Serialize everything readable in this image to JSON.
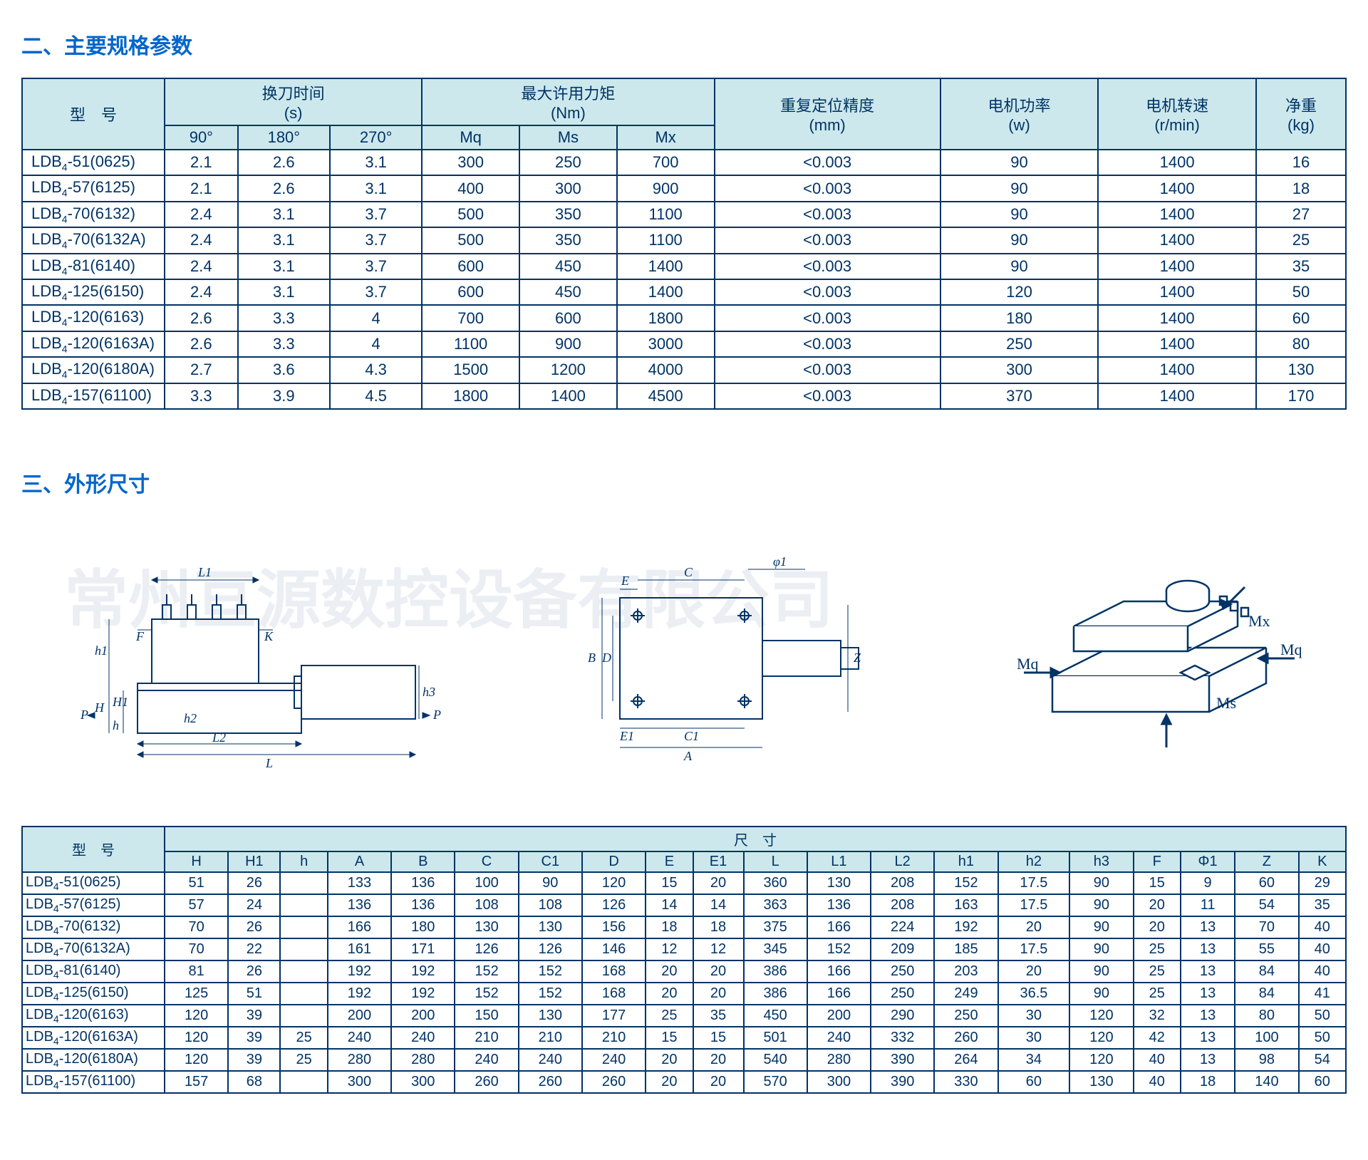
{
  "colors": {
    "border": "#003366",
    "header_bg": "#cce8ec",
    "cell_bg": "#ffffff",
    "text": "#003366",
    "title": "#0066cc",
    "watermark": "rgba(0,50,120,0.08)"
  },
  "watermark_text": "常州亘源数控设备有限公司",
  "section2": {
    "title": "二、主要规格参数",
    "headers": {
      "model": "型　号",
      "tool_time": "换刀时间\n(s)",
      "tool_time_sub": [
        "90°",
        "180°",
        "270°"
      ],
      "torque": "最大许用力矩\n(Nm)",
      "torque_sub": [
        "Mq",
        "Ms",
        "Mx"
      ],
      "repeat": "重复定位精度\n(mm)",
      "power": "电机功率\n(w)",
      "speed": "电机转速\n(r/min)",
      "weight": "净重\n(kg)"
    },
    "rows": [
      {
        "model": "LDB4-51(0625)",
        "t90": "2.1",
        "t180": "2.6",
        "t270": "3.1",
        "mq": "300",
        "ms": "250",
        "mx": "700",
        "rep": "<0.003",
        "pw": "90",
        "sp": "1400",
        "wt": "16"
      },
      {
        "model": "LDB4-57(6125)",
        "t90": "2.1",
        "t180": "2.6",
        "t270": "3.1",
        "mq": "400",
        "ms": "300",
        "mx": "900",
        "rep": "<0.003",
        "pw": "90",
        "sp": "1400",
        "wt": "18"
      },
      {
        "model": "LDB4-70(6132)",
        "t90": "2.4",
        "t180": "3.1",
        "t270": "3.7",
        "mq": "500",
        "ms": "350",
        "mx": "1100",
        "rep": "<0.003",
        "pw": "90",
        "sp": "1400",
        "wt": "27"
      },
      {
        "model": "LDB4-70(6132A)",
        "t90": "2.4",
        "t180": "3.1",
        "t270": "3.7",
        "mq": "500",
        "ms": "350",
        "mx": "1100",
        "rep": "<0.003",
        "pw": "90",
        "sp": "1400",
        "wt": "25"
      },
      {
        "model": "LDB4-81(6140)",
        "t90": "2.4",
        "t180": "3.1",
        "t270": "3.7",
        "mq": "600",
        "ms": "450",
        "mx": "1400",
        "rep": "<0.003",
        "pw": "90",
        "sp": "1400",
        "wt": "35"
      },
      {
        "model": "LDB4-125(6150)",
        "t90": "2.4",
        "t180": "3.1",
        "t270": "3.7",
        "mq": "600",
        "ms": "450",
        "mx": "1400",
        "rep": "<0.003",
        "pw": "120",
        "sp": "1400",
        "wt": "50"
      },
      {
        "model": "LDB4-120(6163)",
        "t90": "2.6",
        "t180": "3.3",
        "t270": "4",
        "mq": "700",
        "ms": "600",
        "mx": "1800",
        "rep": "<0.003",
        "pw": "180",
        "sp": "1400",
        "wt": "60"
      },
      {
        "model": "LDB4-120(6163A)",
        "t90": "2.6",
        "t180": "3.3",
        "t270": "4",
        "mq": "1100",
        "ms": "900",
        "mx": "3000",
        "rep": "<0.003",
        "pw": "250",
        "sp": "1400",
        "wt": "80"
      },
      {
        "model": "LDB4-120(6180A)",
        "t90": "2.7",
        "t180": "3.6",
        "t270": "4.3",
        "mq": "1500",
        "ms": "1200",
        "mx": "4000",
        "rep": "<0.003",
        "pw": "300",
        "sp": "1400",
        "wt": "130"
      },
      {
        "model": "LDB4-157(61100)",
        "t90": "3.3",
        "t180": "3.9",
        "t270": "4.5",
        "mq": "1800",
        "ms": "1400",
        "mx": "4500",
        "rep": "<0.003",
        "pw": "370",
        "sp": "1400",
        "wt": "170"
      }
    ]
  },
  "section3": {
    "title": "三、外形尺寸",
    "diagram_labels": {
      "d1": [
        "L1",
        "F",
        "K",
        "h1",
        "H",
        "H1",
        "h",
        "P",
        "h2",
        "L2",
        "L",
        "h3",
        "P"
      ],
      "d2": [
        "E",
        "C",
        "φ1",
        "B",
        "D",
        "Z",
        "E1",
        "C1",
        "A"
      ],
      "d3": [
        "Mx",
        "Mq",
        "Mq",
        "Ms"
      ]
    },
    "headers": {
      "model": "型　号",
      "dims": "尺　寸",
      "cols": [
        "H",
        "H1",
        "h",
        "A",
        "B",
        "C",
        "C1",
        "D",
        "E",
        "E1",
        "L",
        "L1",
        "L2",
        "h1",
        "h2",
        "h3",
        "F",
        "Φ1",
        "Z",
        "K"
      ]
    },
    "rows": [
      {
        "model": "LDB4-51(0625)",
        "v": [
          "51",
          "26",
          "",
          "133",
          "136",
          "100",
          "90",
          "120",
          "15",
          "20",
          "360",
          "130",
          "208",
          "152",
          "17.5",
          "90",
          "15",
          "9",
          "60",
          "29"
        ]
      },
      {
        "model": "LDB4-57(6125)",
        "v": [
          "57",
          "24",
          "",
          "136",
          "136",
          "108",
          "108",
          "126",
          "14",
          "14",
          "363",
          "136",
          "208",
          "163",
          "17.5",
          "90",
          "20",
          "11",
          "54",
          "35"
        ]
      },
      {
        "model": "LDB4-70(6132)",
        "v": [
          "70",
          "26",
          "",
          "166",
          "180",
          "130",
          "130",
          "156",
          "18",
          "18",
          "375",
          "166",
          "224",
          "192",
          "20",
          "90",
          "20",
          "13",
          "70",
          "40"
        ]
      },
      {
        "model": "LDB4-70(6132A)",
        "v": [
          "70",
          "22",
          "",
          "161",
          "171",
          "126",
          "126",
          "146",
          "12",
          "12",
          "345",
          "152",
          "209",
          "185",
          "17.5",
          "90",
          "25",
          "13",
          "55",
          "40"
        ]
      },
      {
        "model": "LDB4-81(6140)",
        "v": [
          "81",
          "26",
          "",
          "192",
          "192",
          "152",
          "152",
          "168",
          "20",
          "20",
          "386",
          "166",
          "250",
          "203",
          "20",
          "90",
          "25",
          "13",
          "84",
          "40"
        ]
      },
      {
        "model": "LDB4-125(6150)",
        "v": [
          "125",
          "51",
          "",
          "192",
          "192",
          "152",
          "152",
          "168",
          "20",
          "20",
          "386",
          "166",
          "250",
          "249",
          "36.5",
          "90",
          "25",
          "13",
          "84",
          "41"
        ]
      },
      {
        "model": "LDB4-120(6163)",
        "v": [
          "120",
          "39",
          "",
          "200",
          "200",
          "150",
          "130",
          "177",
          "25",
          "35",
          "450",
          "200",
          "290",
          "250",
          "30",
          "120",
          "32",
          "13",
          "80",
          "50"
        ]
      },
      {
        "model": "LDB4-120(6163A)",
        "v": [
          "120",
          "39",
          "25",
          "240",
          "240",
          "210",
          "210",
          "210",
          "15",
          "15",
          "501",
          "240",
          "332",
          "260",
          "30",
          "120",
          "42",
          "13",
          "100",
          "50"
        ]
      },
      {
        "model": "LDB4-120(6180A)",
        "v": [
          "120",
          "39",
          "25",
          "280",
          "280",
          "240",
          "240",
          "240",
          "20",
          "20",
          "540",
          "280",
          "390",
          "264",
          "34",
          "120",
          "40",
          "13",
          "98",
          "54"
        ]
      },
      {
        "model": "LDB4-157(61100)",
        "v": [
          "157",
          "68",
          "",
          "300",
          "300",
          "260",
          "260",
          "260",
          "20",
          "20",
          "570",
          "300",
          "390",
          "330",
          "60",
          "130",
          "40",
          "18",
          "140",
          "60"
        ]
      }
    ]
  }
}
